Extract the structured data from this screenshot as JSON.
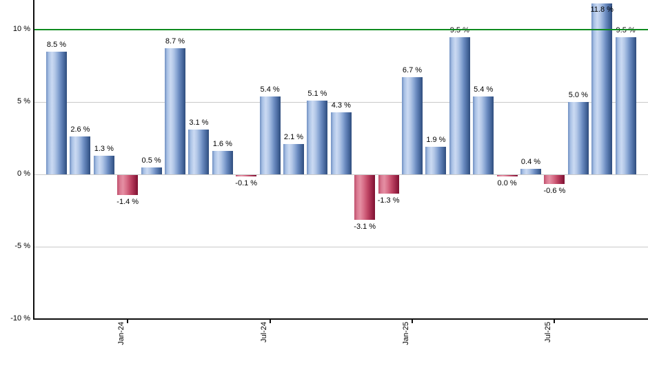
{
  "chart_data": {
    "type": "bar",
    "description": "Monthly return percentages bar chart",
    "grid": true,
    "legend_position": "none",
    "ylim": [
      -10,
      12.05
    ],
    "y_ticks": [
      {
        "value": 10,
        "label": "10 %"
      },
      {
        "value": 5,
        "label": "5 %"
      },
      {
        "value": 0,
        "label": "0 %"
      },
      {
        "value": -5,
        "label": "-5 %"
      },
      {
        "value": -10,
        "label": "-10 %"
      }
    ],
    "x_tick_labels": [
      {
        "bar_index": 3,
        "label": "Jan-24"
      },
      {
        "bar_index": 9,
        "label": "Jul-24"
      },
      {
        "bar_index": 15,
        "label": "Jan-25"
      },
      {
        "bar_index": 21,
        "label": "Jul-25"
      }
    ],
    "reference_line": {
      "value": 10,
      "color": "#0e8a1e"
    },
    "bars": [
      {
        "value": 8.5,
        "label": "8.5 %"
      },
      {
        "value": 2.6,
        "label": "2.6 %"
      },
      {
        "value": 1.3,
        "label": "1.3 %"
      },
      {
        "value": -1.4,
        "label": "-1.4 %"
      },
      {
        "value": 0.5,
        "label": "0.5 %"
      },
      {
        "value": 8.7,
        "label": "8.7 %"
      },
      {
        "value": 3.1,
        "label": "3.1 %"
      },
      {
        "value": 1.6,
        "label": "1.6 %"
      },
      {
        "value": -0.1,
        "label": "-0.1 %"
      },
      {
        "value": 5.4,
        "label": "5.4 %"
      },
      {
        "value": 2.1,
        "label": "2.1 %"
      },
      {
        "value": 5.1,
        "label": "5.1 %"
      },
      {
        "value": 4.3,
        "label": "4.3 %"
      },
      {
        "value": -3.1,
        "label": "-3.1 %"
      },
      {
        "value": -1.3,
        "label": "-1.3 %"
      },
      {
        "value": 6.7,
        "label": "6.7 %"
      },
      {
        "value": 1.9,
        "label": "1.9 %"
      },
      {
        "value": 9.5,
        "label": "9.5 %"
      },
      {
        "value": 5.4,
        "label": "5.4 %"
      },
      {
        "value": 0.0,
        "label": "0.0 %",
        "negative": true
      },
      {
        "value": 0.4,
        "label": "0.4 %"
      },
      {
        "value": -0.6,
        "label": "-0.6 %"
      },
      {
        "value": 5.0,
        "label": "5.0 %"
      },
      {
        "value": 11.8,
        "label": "11.8 %"
      },
      {
        "value": 9.5,
        "label": "9.5 %"
      }
    ],
    "colors": {
      "positive_bar": "#6d8cc0",
      "negative_bar": "#c0365c",
      "gridline": "#c9c9c9",
      "axis": "#0d0d0d",
      "reference": "#0e8a1e",
      "label_text": "#000000"
    }
  }
}
